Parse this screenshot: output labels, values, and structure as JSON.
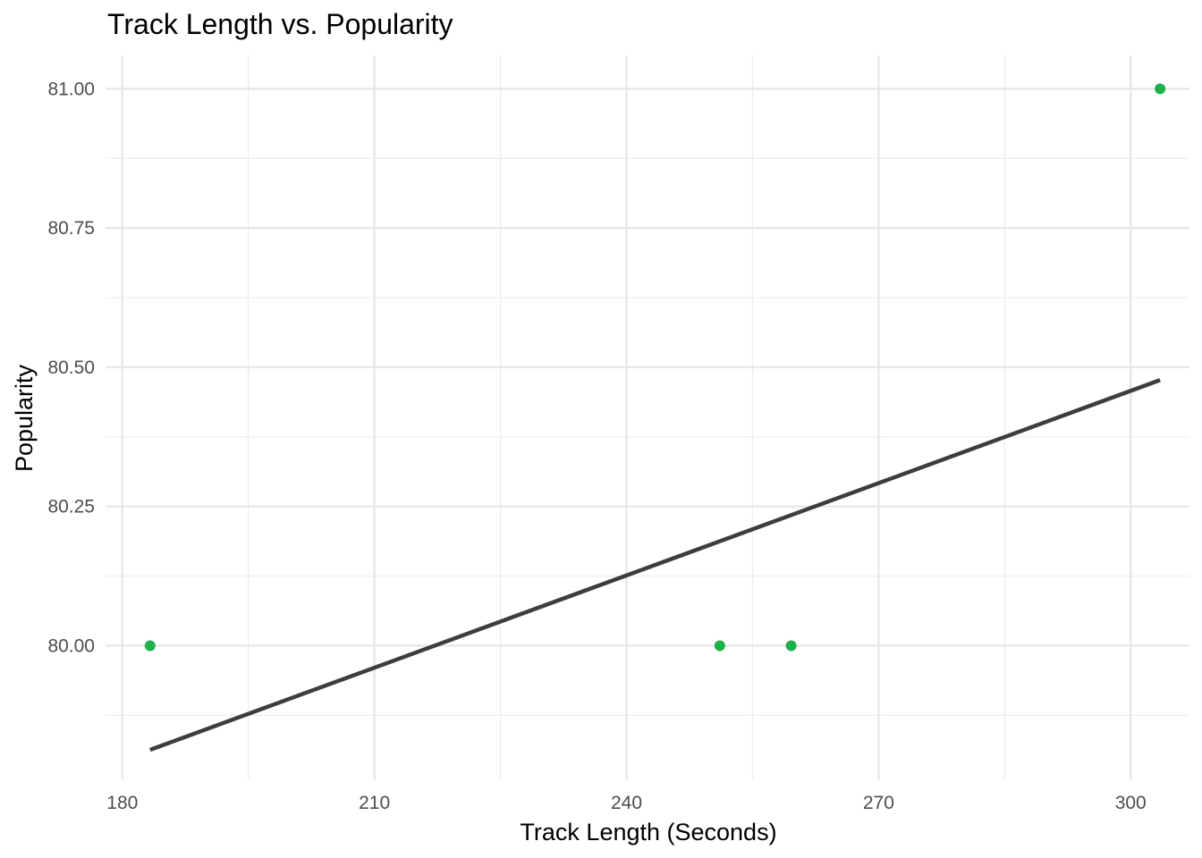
{
  "chart_data": {
    "type": "scatter",
    "title": "Track Length vs. Popularity",
    "xlabel": "Track Length (Seconds)",
    "ylabel": "Popularity",
    "xlim": [
      178,
      307
    ],
    "ylim": [
      79.76,
      81.06
    ],
    "x_ticks": [
      180,
      210,
      240,
      270,
      300
    ],
    "x_tick_labels": [
      "180",
      "210",
      "240",
      "270",
      "300"
    ],
    "x_minor_ticks": [
      195,
      225,
      255,
      285
    ],
    "y_ticks": [
      80.0,
      80.25,
      80.5,
      80.75,
      81.0
    ],
    "y_tick_labels": [
      "80.00",
      "80.25",
      "80.50",
      "80.75",
      "81.00"
    ],
    "y_minor_ticks": [
      79.875,
      80.125,
      80.375,
      80.625,
      80.875
    ],
    "grid": true,
    "legend": "none",
    "point_color": "#1DB04B",
    "line_color": "#3d3d3d",
    "points": [
      {
        "x": 183.3,
        "y": 80.0
      },
      {
        "x": 251.1,
        "y": 80.0
      },
      {
        "x": 259.6,
        "y": 80.0
      },
      {
        "x": 303.5,
        "y": 81.0
      }
    ],
    "trend_line": [
      {
        "x": 183.3,
        "y": 79.813
      },
      {
        "x": 303.5,
        "y": 80.477
      }
    ]
  }
}
